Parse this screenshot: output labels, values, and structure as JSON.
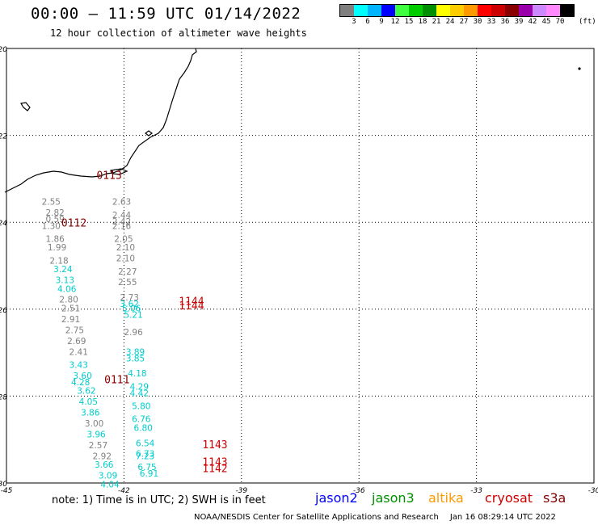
{
  "title": "00:00 – 11:59 UTC 01/14/2022",
  "subtitle": "12 hour collection of altimeter wave heights",
  "legend": {
    "colors": [
      "#7f7f7f",
      "#00ffff",
      "#00b4ff",
      "#0000ff",
      "#40ff40",
      "#00cc00",
      "#008f00",
      "#ffff00",
      "#ffcc00",
      "#ff9900",
      "#ff0000",
      "#cc0000",
      "#880000",
      "#9900aa",
      "#cc88ff",
      "#ff88ff",
      "#000000"
    ],
    "ticks": [
      "3",
      "6",
      "9",
      "12",
      "15",
      "18",
      "21",
      "24",
      "27",
      "30",
      "33",
      "36",
      "39",
      "42",
      "45",
      "70"
    ],
    "unit": "(ft)"
  },
  "map": {
    "lon_range": [
      -45,
      -30
    ],
    "lat_range": [
      -30,
      -20
    ],
    "lon_ticks": [
      "-45",
      "-42",
      "-39",
      "-36",
      "-33",
      "-30"
    ],
    "lat_ticks": [
      "-20",
      "-22",
      "-24",
      "-26",
      "-28",
      "-30"
    ],
    "satellite_colors": {
      "jason2": "#0000ff",
      "jason3": "#008f00",
      "altika": "#ff9900",
      "cryosat": "#cc0000",
      "s3a": "#880000",
      "gray": "#808080",
      "cyan": "#00cccc"
    },
    "time_labels": [
      {
        "text": "0113",
        "lon": -42.7,
        "lat": -23.0,
        "color": "s3a"
      },
      {
        "text": "0112",
        "lon": -43.6,
        "lat": -24.1,
        "color": "s3a"
      },
      {
        "text": "0111",
        "lon": -42.5,
        "lat": -27.7,
        "color": "s3a"
      },
      {
        "text": "1144",
        "lon": -40.6,
        "lat": -25.9,
        "color": "cryosat"
      },
      {
        "text": "1144",
        "lon": -40.6,
        "lat": -26.0,
        "color": "cryosat"
      },
      {
        "text": "1143",
        "lon": -40.0,
        "lat": -29.2,
        "color": "cryosat"
      },
      {
        "text": "1143",
        "lon": -40.0,
        "lat": -29.6,
        "color": "cryosat"
      },
      {
        "text": "1142",
        "lon": -40.0,
        "lat": -29.75,
        "color": "cryosat"
      }
    ],
    "wave_heights": [
      {
        "text": "2.55",
        "lon": -44.1,
        "lat": -23.6,
        "color": "gray"
      },
      {
        "text": "2.82",
        "lon": -44.0,
        "lat": -23.85,
        "color": "gray"
      },
      {
        "text": "0.59",
        "lon": -44.0,
        "lat": -24.0,
        "color": "gray"
      },
      {
        "text": "1.30",
        "lon": -44.1,
        "lat": -24.15,
        "color": "gray"
      },
      {
        "text": "1.86",
        "lon": -44.0,
        "lat": -24.45,
        "color": "gray"
      },
      {
        "text": "1.99",
        "lon": -43.95,
        "lat": -24.65,
        "color": "gray"
      },
      {
        "text": "2.18",
        "lon": -43.9,
        "lat": -24.95,
        "color": "gray"
      },
      {
        "text": "3.24",
        "lon": -43.8,
        "lat": -25.15,
        "color": "cyan"
      },
      {
        "text": "3.13",
        "lon": -43.75,
        "lat": -25.4,
        "color": "cyan"
      },
      {
        "text": "4.06",
        "lon": -43.7,
        "lat": -25.6,
        "color": "cyan"
      },
      {
        "text": "2.80",
        "lon": -43.65,
        "lat": -25.85,
        "color": "gray"
      },
      {
        "text": "2.51",
        "lon": -43.6,
        "lat": -26.05,
        "color": "gray"
      },
      {
        "text": "2.91",
        "lon": -43.6,
        "lat": -26.3,
        "color": "gray"
      },
      {
        "text": "2.75",
        "lon": -43.5,
        "lat": -26.55,
        "color": "gray"
      },
      {
        "text": "2.69",
        "lon": -43.45,
        "lat": -26.8,
        "color": "gray"
      },
      {
        "text": "2.41",
        "lon": -43.4,
        "lat": -27.05,
        "color": "gray"
      },
      {
        "text": "3.43",
        "lon": -43.4,
        "lat": -27.35,
        "color": "cyan"
      },
      {
        "text": "3.60",
        "lon": -43.3,
        "lat": -27.6,
        "color": "cyan"
      },
      {
        "text": "4.28",
        "lon": -43.35,
        "lat": -27.75,
        "color": "cyan"
      },
      {
        "text": "3.62",
        "lon": -43.2,
        "lat": -27.95,
        "color": "cyan"
      },
      {
        "text": "4.05",
        "lon": -43.15,
        "lat": -28.2,
        "color": "cyan"
      },
      {
        "text": "3.86",
        "lon": -43.1,
        "lat": -28.45,
        "color": "cyan"
      },
      {
        "text": "3.00",
        "lon": -43.0,
        "lat": -28.7,
        "color": "gray"
      },
      {
        "text": "3.96",
        "lon": -42.95,
        "lat": -28.95,
        "color": "cyan"
      },
      {
        "text": "2.57",
        "lon": -42.9,
        "lat": -29.2,
        "color": "gray"
      },
      {
        "text": "2.92",
        "lon": -42.8,
        "lat": -29.45,
        "color": "gray"
      },
      {
        "text": "3.66",
        "lon": -42.75,
        "lat": -29.65,
        "color": "cyan"
      },
      {
        "text": "3.09",
        "lon": -42.65,
        "lat": -29.9,
        "color": "cyan"
      },
      {
        "text": "4.04",
        "lon": -42.6,
        "lat": -30.1,
        "color": "cyan"
      },
      {
        "text": "2.63",
        "lon": -42.3,
        "lat": -23.6,
        "color": "gray"
      },
      {
        "text": "2.44",
        "lon": -42.3,
        "lat": -23.9,
        "color": "gray"
      },
      {
        "text": "2.42",
        "lon": -42.3,
        "lat": -24.05,
        "color": "gray"
      },
      {
        "text": "2.16",
        "lon": -42.3,
        "lat": -24.15,
        "color": "gray"
      },
      {
        "text": "2.05",
        "lon": -42.25,
        "lat": -24.45,
        "color": "gray"
      },
      {
        "text": "2.10",
        "lon": -42.2,
        "lat": -24.65,
        "color": "gray"
      },
      {
        "text": "2.10",
        "lon": -42.2,
        "lat": -24.9,
        "color": "gray"
      },
      {
        "text": "2.27",
        "lon": -42.15,
        "lat": -25.2,
        "color": "gray"
      },
      {
        "text": "2.55",
        "lon": -42.15,
        "lat": -25.45,
        "color": "gray"
      },
      {
        "text": "2.73",
        "lon": -42.1,
        "lat": -25.8,
        "color": "gray"
      },
      {
        "text": "3.62",
        "lon": -42.1,
        "lat": -25.95,
        "color": "cyan"
      },
      {
        "text": "5.06",
        "lon": -42.05,
        "lat": -26.05,
        "color": "cyan"
      },
      {
        "text": "5.21",
        "lon": -42.0,
        "lat": -26.2,
        "color": "cyan"
      },
      {
        "text": "2.96",
        "lon": -42.0,
        "lat": -26.6,
        "color": "gray"
      },
      {
        "text": "3.89",
        "lon": -41.95,
        "lat": -27.05,
        "color": "cyan"
      },
      {
        "text": "3.85",
        "lon": -41.95,
        "lat": -27.2,
        "color": "cyan"
      },
      {
        "text": "4.18",
        "lon": -41.9,
        "lat": -27.55,
        "color": "cyan"
      },
      {
        "text": "4.29",
        "lon": -41.85,
        "lat": -27.85,
        "color": "cyan"
      },
      {
        "text": "4.42",
        "lon": -41.85,
        "lat": -28.0,
        "color": "cyan"
      },
      {
        "text": "5.80",
        "lon": -41.8,
        "lat": -28.3,
        "color": "cyan"
      },
      {
        "text": "6.76",
        "lon": -41.8,
        "lat": -28.6,
        "color": "cyan"
      },
      {
        "text": "6.80",
        "lon": -41.75,
        "lat": -28.8,
        "color": "cyan"
      },
      {
        "text": "6.54",
        "lon": -41.7,
        "lat": -29.15,
        "color": "cyan"
      },
      {
        "text": "6.73",
        "lon": -41.7,
        "lat": -29.4,
        "color": "cyan"
      },
      {
        "text": "7.23",
        "lon": -41.7,
        "lat": -29.45,
        "color": "cyan"
      },
      {
        "text": "6.75",
        "lon": -41.65,
        "lat": -29.7,
        "color": "cyan"
      },
      {
        "text": "6.91",
        "lon": -41.6,
        "lat": -29.85,
        "color": "cyan"
      }
    ]
  },
  "footer": {
    "note": "note: 1) Time is in UTC; 2) SWH is in feet",
    "satellites": [
      "jason2",
      "jason3",
      "altika",
      "cryosat",
      "s3a"
    ],
    "credit": "NOAA/NESDIS Center for Satellite Applications and Research",
    "timestamp": "Jan 16 08:29:14 UTC 2022"
  }
}
